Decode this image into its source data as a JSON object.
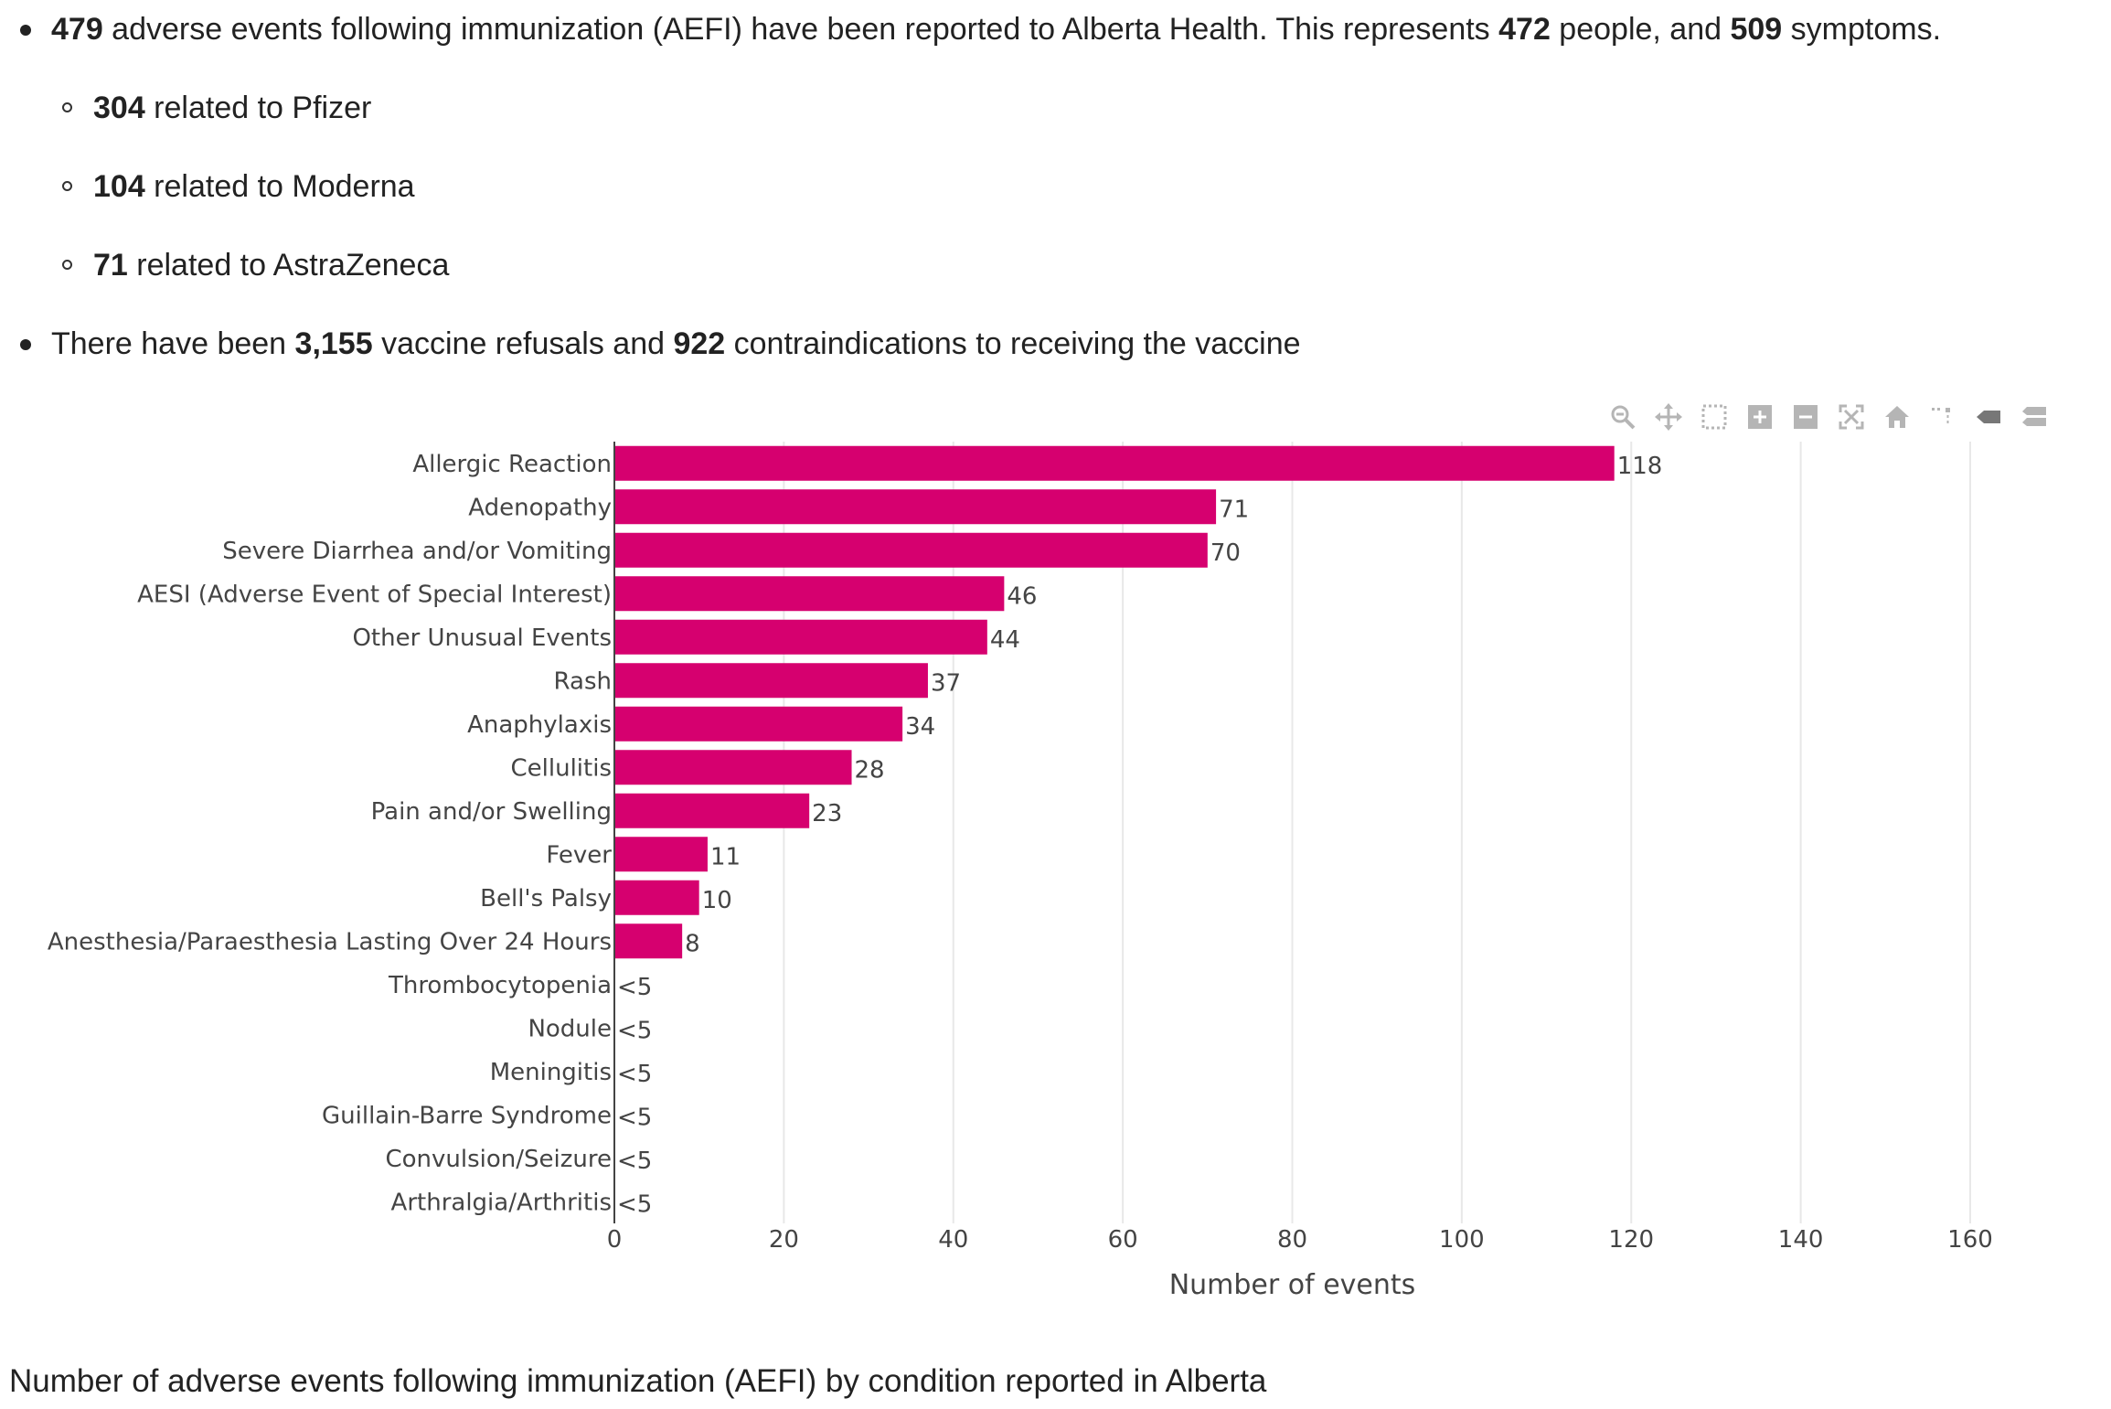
{
  "bullets": {
    "b1": {
      "n1": "479",
      "t1": " adverse events following immunization (AEFI) have been reported to Alberta Health. This represents ",
      "n2": "472",
      "t2": " people, and ",
      "n3": "509",
      "t3": " symptoms."
    },
    "sub": [
      {
        "num": "304",
        "text": " related to Pfizer"
      },
      {
        "num": "104",
        "text": " related to Moderna"
      },
      {
        "num": "71",
        "text": " related to AstraZeneca"
      }
    ],
    "b2": {
      "t1": "There have been ",
      "n1": "3,155",
      "t2": " vaccine refusals and ",
      "n2": "922",
      "t3": " contraindications to receiving the vaccine"
    }
  },
  "modebar": {
    "icons": [
      "zoom-icon",
      "pan-icon",
      "box-select-icon",
      "zoom-in-icon",
      "zoom-out-icon",
      "autoscale-icon",
      "reset-axes-icon",
      "spike-lines-icon",
      "hover-closest-icon",
      "hover-compare-icon"
    ]
  },
  "caption": "Number of adverse events following immunization (AEFI) by condition reported in Alberta",
  "chart_data": {
    "type": "bar",
    "orientation": "horizontal",
    "color": "#d6006f",
    "categories": [
      "Allergic Reaction",
      "Adenopathy",
      "Severe Diarrhea and/or Vomiting",
      "AESI (Adverse Event of Special Interest)",
      "Other Unusual Events",
      "Rash",
      "Anaphylaxis",
      "Cellulitis",
      "Pain and/or Swelling",
      "Fever",
      "Bell's Palsy",
      "Anesthesia/Paraesthesia Lasting Over 24 Hours",
      "Thrombocytopenia",
      "Nodule",
      "Meningitis",
      "Guillain-Barre Syndrome",
      "Convulsion/Seizure",
      "Arthralgia/Arthritis"
    ],
    "values": [
      118,
      71,
      70,
      46,
      44,
      37,
      34,
      28,
      23,
      11,
      10,
      8,
      0,
      0,
      0,
      0,
      0,
      0
    ],
    "labels": [
      "118",
      "71",
      "70",
      "46",
      "44",
      "37",
      "34",
      "28",
      "23",
      "11",
      "10",
      "8",
      "<5",
      "<5",
      "<5",
      "<5",
      "<5",
      "<5"
    ],
    "xlabel": "Number of events",
    "ylabel": "",
    "xlim": [
      0,
      160
    ],
    "xticks": [
      "0",
      "20",
      "40",
      "60",
      "80",
      "100",
      "120",
      "140",
      "160"
    ],
    "grid": true
  }
}
